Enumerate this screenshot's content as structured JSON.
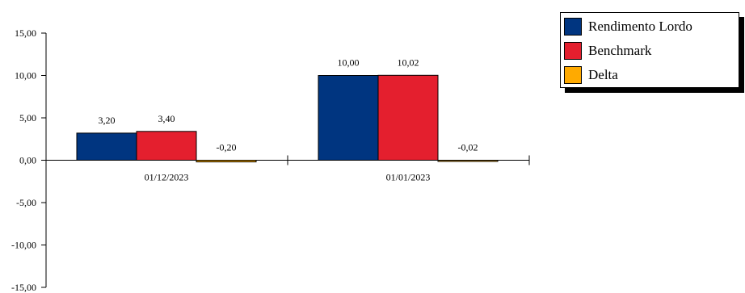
{
  "chart_data": {
    "type": "bar",
    "categories": [
      "01/12/2023",
      "01/01/2023"
    ],
    "series": [
      {
        "name": "Rendimento Lordo",
        "values": [
          3.2,
          10.0
        ],
        "labels": [
          "3,20",
          "10,00"
        ],
        "color": "#003580"
      },
      {
        "name": "Benchmark",
        "values": [
          3.4,
          10.02
        ],
        "labels": [
          "3,40",
          "10,02"
        ],
        "color": "#e41f2e"
      },
      {
        "name": "Delta",
        "values": [
          -0.2,
          -0.02
        ],
        "labels": [
          "-0,20",
          "-0,02"
        ],
        "color": "#ffaa00"
      }
    ],
    "y_ticks": [
      15,
      10,
      5,
      0,
      -5,
      -10,
      -15
    ],
    "y_tick_labels": [
      "15,00",
      "10,00",
      "5,00",
      "0,00",
      "-5,00",
      "-10,00",
      "-15,00"
    ],
    "ylim": [
      -15,
      15
    ],
    "legend_position": "top-right",
    "grid": false
  }
}
